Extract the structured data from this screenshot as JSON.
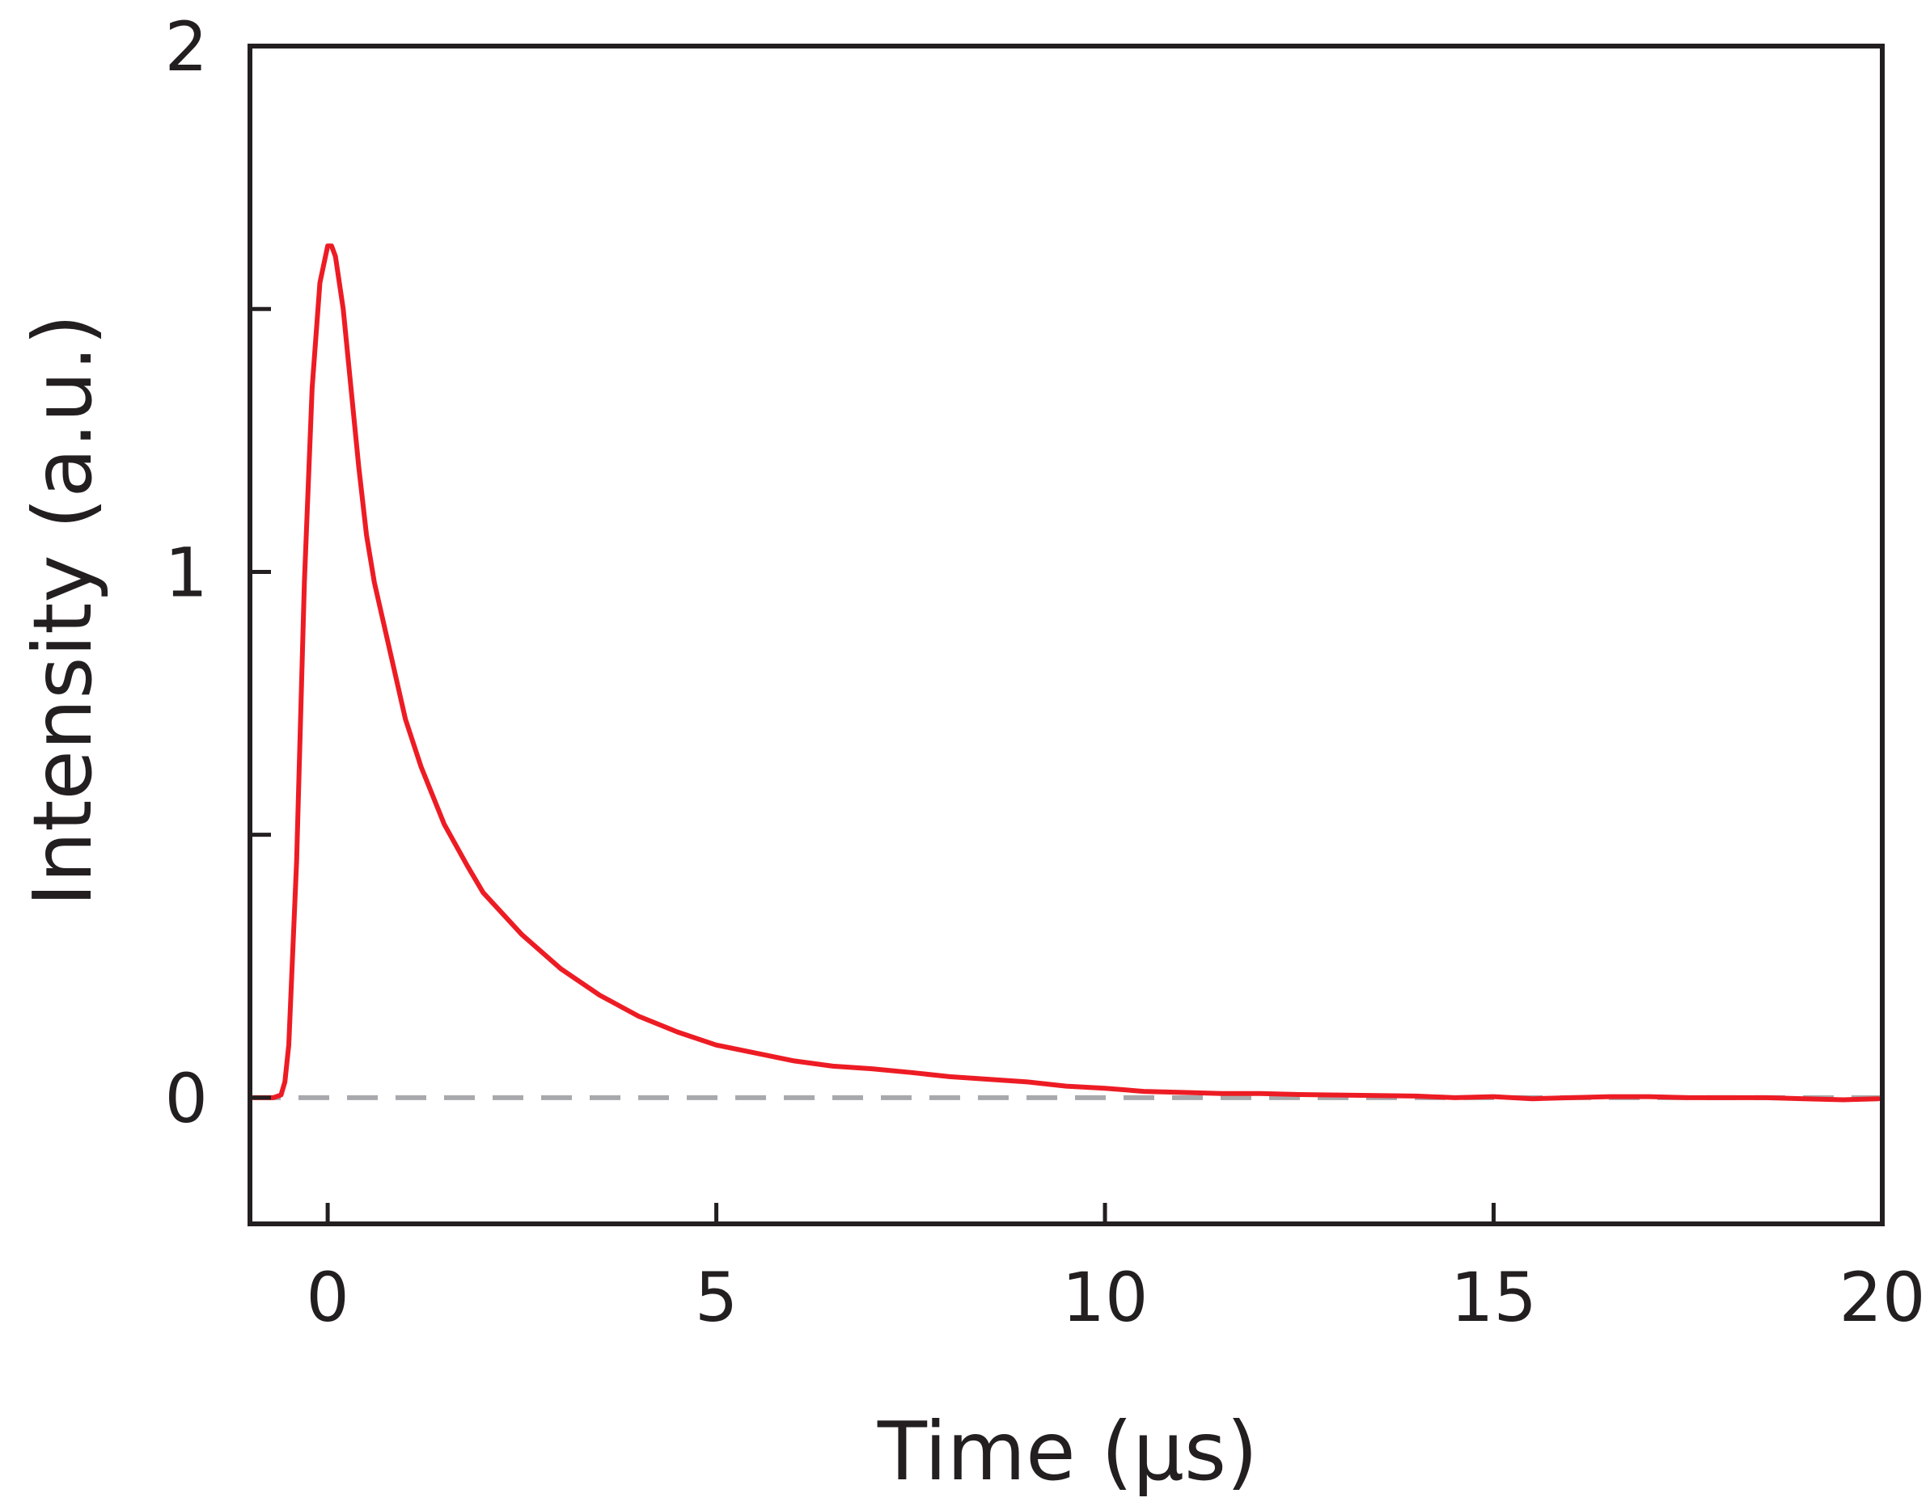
{
  "chart_data": {
    "type": "line",
    "xlabel": "Time (µs)",
    "ylabel": "Intensity (a.u.)",
    "xlim": [
      -1,
      20
    ],
    "ylim": [
      -0.24,
      2
    ],
    "x_ticks": [
      0,
      5,
      10,
      15,
      20
    ],
    "x_tick_labels": [
      "0",
      "5",
      "10",
      "15",
      "20"
    ],
    "y_ticks": [
      0,
      0.5,
      1,
      1.5,
      2
    ],
    "y_tick_labels": [
      "0",
      "",
      "1",
      "",
      "2"
    ],
    "grid": false,
    "baseline": {
      "y": 0,
      "style": "dashed",
      "color": "#a7a9ac"
    },
    "series": [
      {
        "color": "#ed1c24",
        "x": [
          -0.95,
          -0.8,
          -0.7,
          -0.6,
          -0.55,
          -0.5,
          -0.4,
          -0.3,
          -0.2,
          -0.1,
          0.0,
          0.05,
          0.1,
          0.2,
          0.3,
          0.4,
          0.5,
          0.6,
          0.8,
          1.0,
          1.2,
          1.5,
          1.8,
          2.0,
          2.5,
          3.0,
          3.5,
          4.0,
          4.5,
          5.0,
          5.5,
          6.0,
          6.5,
          7.0,
          7.5,
          8.0,
          8.5,
          9.0,
          9.5,
          10.0,
          10.5,
          11.0,
          11.5,
          12.0,
          12.5,
          13.0,
          13.5,
          14.0,
          14.5,
          15.0,
          15.5,
          16.0,
          16.5,
          17.0,
          17.5,
          18.0,
          18.5,
          19.0,
          19.5,
          19.95
        ],
        "y": [
          0.0,
          0.0,
          0.0,
          0.005,
          0.03,
          0.1,
          0.45,
          0.98,
          1.35,
          1.55,
          1.62,
          1.62,
          1.6,
          1.5,
          1.35,
          1.2,
          1.07,
          0.98,
          0.85,
          0.72,
          0.63,
          0.52,
          0.44,
          0.39,
          0.31,
          0.245,
          0.195,
          0.155,
          0.125,
          0.1,
          0.085,
          0.07,
          0.06,
          0.055,
          0.048,
          0.04,
          0.035,
          0.03,
          0.022,
          0.018,
          0.012,
          0.01,
          0.008,
          0.008,
          0.006,
          0.005,
          0.004,
          0.003,
          0.0,
          0.002,
          -0.002,
          0.0,
          0.002,
          0.002,
          0.0,
          0.0,
          0.0,
          -0.002,
          -0.004,
          -0.002
        ]
      }
    ]
  }
}
